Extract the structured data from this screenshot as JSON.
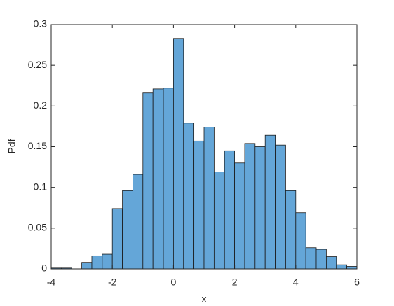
{
  "chart_data": {
    "type": "histogram",
    "xlabel": "x",
    "ylabel": "Pdf",
    "bins": [
      -4,
      -3.67,
      -3.33,
      -3,
      -2.67,
      -2.33,
      -2,
      -1.67,
      -1.33,
      -1,
      -0.67,
      -0.33,
      0,
      0.33,
      0.67,
      1,
      1.33,
      1.67,
      2,
      2.33,
      2.67,
      3,
      3.33,
      3.67,
      4,
      4.33,
      4.67,
      5,
      5.33,
      5.67,
      6
    ],
    "values": [
      0.001,
      0.001,
      0,
      0.008,
      0.016,
      0.018,
      0.074,
      0.096,
      0.116,
      0.216,
      0.221,
      0.222,
      0.283,
      0.179,
      0.157,
      0.174,
      0.119,
      0.145,
      0.13,
      0.154,
      0.15,
      0.164,
      0.152,
      0.096,
      0.069,
      0.026,
      0.024,
      0.015,
      0.005,
      0.003
    ],
    "color": "#64a6d8",
    "xlim": [
      -4,
      6
    ],
    "ylim": [
      0,
      0.3
    ],
    "xticks": [
      -4,
      -2,
      0,
      2,
      4,
      6
    ],
    "yticks": [
      0,
      0.05,
      0.1,
      0.15,
      0.2,
      0.25,
      0.3
    ]
  }
}
